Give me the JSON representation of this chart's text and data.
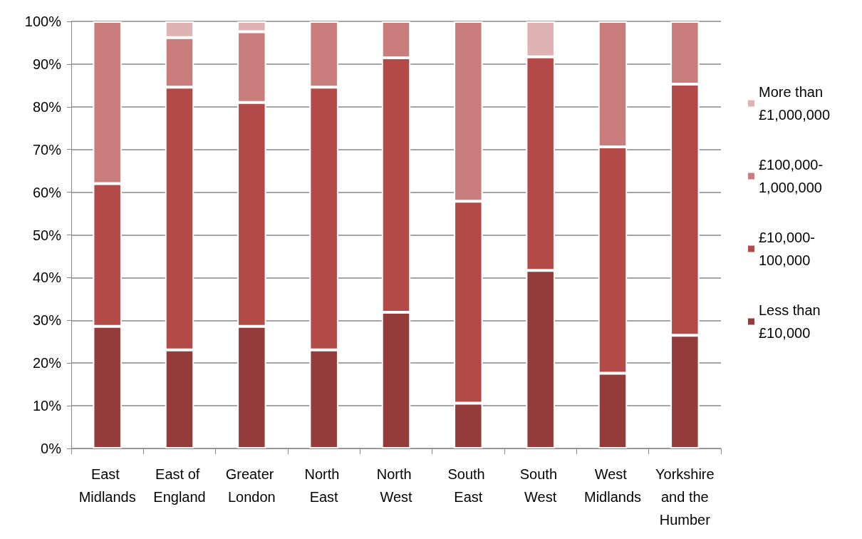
{
  "chart_data": {
    "type": "bar",
    "stacked": true,
    "categories": [
      "East Midlands",
      "East of England",
      "Greater London",
      "North East",
      "North West",
      "South East",
      "South West",
      "West Midlands",
      "Yorkshire and the Humber"
    ],
    "series": [
      {
        "name": "Less than £10,000",
        "color": "#943c3b",
        "values": [
          28.6,
          23.1,
          28.6,
          23.1,
          31.9,
          10.6,
          41.7,
          17.6,
          26.5
        ]
      },
      {
        "name": "£10,000-100,000",
        "color": "#b24a48",
        "values": [
          33.4,
          61.5,
          52.4,
          61.5,
          59.6,
          47.3,
          50,
          53,
          58.8
        ]
      },
      {
        "name": "£100,000-1,000,000",
        "color": "#c97d7c",
        "values": [
          38,
          11.6,
          16.6,
          15.4,
          8.5,
          42.1,
          0,
          29.4,
          14.7
        ]
      },
      {
        "name": "More than £1,000,000",
        "color": "#dfb3b3",
        "values": [
          0,
          3.8,
          2.4,
          0,
          0,
          0,
          8.3,
          0,
          0
        ]
      }
    ],
    "ylim": [
      0,
      100
    ],
    "yticks": [
      {
        "value": 0,
        "label": "0%"
      },
      {
        "value": 10,
        "label": "10%"
      },
      {
        "value": 20,
        "label": "20%"
      },
      {
        "value": 30,
        "label": "30%"
      },
      {
        "value": 40,
        "label": "40%"
      },
      {
        "value": 50,
        "label": "50%"
      },
      {
        "value": 60,
        "label": "60%"
      },
      {
        "value": 70,
        "label": "70%"
      },
      {
        "value": 80,
        "label": "80%"
      },
      {
        "value": 90,
        "label": "90%"
      },
      {
        "value": 100,
        "label": "100%"
      }
    ],
    "grid": "y",
    "legend": "right"
  }
}
